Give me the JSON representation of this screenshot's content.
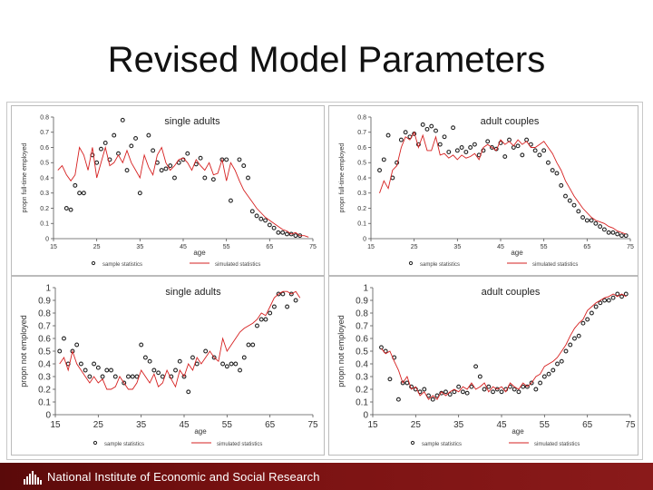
{
  "slide": {
    "title": "Revised Model Parameters",
    "footer_text": "National Institute of Economic and Social Research"
  },
  "colors": {
    "sim_line": "#d62020",
    "sample_marker": "#222222",
    "footer_bg": "#7a1212"
  },
  "chart_data": [
    {
      "type": "scatter",
      "title": "single adults",
      "xlabel": "age",
      "ylabel": "propn full-time employed",
      "xlim": [
        15,
        75
      ],
      "ylim": [
        0,
        0.8
      ],
      "xticks": [
        "15",
        "25",
        "35",
        "45",
        "55",
        "65",
        "75"
      ],
      "yticks": [
        "0",
        "0.1",
        "0.2",
        "0.3",
        "0.4",
        "0.5",
        "0.6",
        "0.7",
        "0.8"
      ],
      "legend": [
        "sample statistics",
        "simulated statistics"
      ],
      "series": [
        {
          "name": "sample statistics",
          "kind": "markers",
          "x": [
            18,
            19,
            20,
            21,
            22,
            24,
            25,
            26,
            27,
            28,
            29,
            30,
            31,
            32,
            33,
            34,
            35,
            37,
            38,
            39,
            40,
            41,
            42,
            43,
            44,
            45,
            46,
            48,
            49,
            50,
            52,
            54,
            55,
            56,
            58,
            59,
            60,
            61,
            62,
            63,
            64,
            65,
            66,
            67,
            68,
            69,
            70,
            71,
            72
          ],
          "y": [
            0.2,
            0.19,
            0.35,
            0.3,
            0.3,
            0.55,
            0.5,
            0.59,
            0.63,
            0.52,
            0.68,
            0.56,
            0.78,
            0.45,
            0.61,
            0.66,
            0.3,
            0.68,
            0.58,
            0.5,
            0.45,
            0.46,
            0.48,
            0.4,
            0.5,
            0.52,
            0.56,
            0.49,
            0.53,
            0.4,
            0.39,
            0.52,
            0.52,
            0.25,
            0.52,
            0.48,
            0.4,
            0.18,
            0.15,
            0.13,
            0.12,
            0.09,
            0.07,
            0.04,
            0.04,
            0.03,
            0.03,
            0.02,
            0.02
          ]
        },
        {
          "name": "simulated statistics",
          "kind": "line",
          "x": [
            16,
            17,
            18,
            19,
            20,
            21,
            22,
            23,
            24,
            25,
            26,
            27,
            28,
            29,
            30,
            31,
            32,
            33,
            34,
            35,
            36,
            37,
            38,
            39,
            40,
            41,
            42,
            43,
            44,
            45,
            46,
            47,
            48,
            49,
            50,
            51,
            52,
            53,
            54,
            55,
            56,
            57,
            58,
            59,
            60,
            61,
            62,
            63,
            64,
            65,
            66,
            67,
            68,
            69,
            70,
            71,
            72,
            73,
            74
          ],
          "y": [
            0.45,
            0.48,
            0.42,
            0.38,
            0.42,
            0.6,
            0.55,
            0.45,
            0.6,
            0.4,
            0.5,
            0.6,
            0.48,
            0.5,
            0.55,
            0.5,
            0.58,
            0.5,
            0.45,
            0.4,
            0.55,
            0.47,
            0.42,
            0.55,
            0.6,
            0.5,
            0.45,
            0.48,
            0.52,
            0.53,
            0.5,
            0.45,
            0.52,
            0.48,
            0.45,
            0.5,
            0.42,
            0.43,
            0.52,
            0.38,
            0.5,
            0.45,
            0.38,
            0.32,
            0.28,
            0.24,
            0.2,
            0.17,
            0.14,
            0.12,
            0.1,
            0.08,
            0.06,
            0.05,
            0.03,
            0.04,
            0.02,
            0.02,
            0.01
          ]
        }
      ]
    },
    {
      "type": "scatter",
      "title": "adult couples",
      "xlabel": "age",
      "ylabel": "propn full-time employed",
      "xlim": [
        15,
        75
      ],
      "ylim": [
        0,
        0.8
      ],
      "xticks": [
        "15",
        "25",
        "35",
        "45",
        "55",
        "65",
        "75"
      ],
      "yticks": [
        "0",
        "0.1",
        "0.2",
        "0.3",
        "0.4",
        "0.5",
        "0.6",
        "0.7",
        "0.8"
      ],
      "legend": [
        "sample statistics",
        "simulated statistics"
      ],
      "series": [
        {
          "name": "sample statistics",
          "kind": "markers",
          "x": [
            17,
            18,
            19,
            20,
            21,
            22,
            23,
            24,
            25,
            26,
            27,
            28,
            29,
            30,
            31,
            32,
            33,
            34,
            35,
            36,
            37,
            38,
            39,
            40,
            41,
            42,
            43,
            44,
            45,
            46,
            47,
            48,
            49,
            50,
            51,
            52,
            53,
            54,
            55,
            56,
            57,
            58,
            59,
            60,
            61,
            62,
            63,
            64,
            65,
            66,
            67,
            68,
            69,
            70,
            71,
            72,
            73,
            74
          ],
          "y": [
            0.45,
            0.52,
            0.68,
            0.4,
            0.5,
            0.65,
            0.7,
            0.67,
            0.69,
            0.62,
            0.75,
            0.72,
            0.74,
            0.71,
            0.62,
            0.67,
            0.57,
            0.73,
            0.58,
            0.6,
            0.57,
            0.6,
            0.62,
            0.55,
            0.58,
            0.64,
            0.6,
            0.59,
            0.63,
            0.54,
            0.65,
            0.6,
            0.61,
            0.55,
            0.65,
            0.62,
            0.58,
            0.55,
            0.58,
            0.5,
            0.45,
            0.43,
            0.35,
            0.28,
            0.25,
            0.22,
            0.18,
            0.14,
            0.12,
            0.12,
            0.1,
            0.08,
            0.06,
            0.04,
            0.04,
            0.03,
            0.02,
            0.02
          ]
        },
        {
          "name": "simulated statistics",
          "kind": "line",
          "x": [
            17,
            18,
            19,
            20,
            21,
            22,
            23,
            24,
            25,
            26,
            27,
            28,
            29,
            30,
            31,
            32,
            33,
            34,
            35,
            36,
            37,
            38,
            39,
            40,
            41,
            42,
            43,
            44,
            45,
            46,
            47,
            48,
            49,
            50,
            51,
            52,
            53,
            54,
            55,
            56,
            57,
            58,
            59,
            60,
            61,
            62,
            63,
            64,
            65,
            66,
            67,
            68,
            69,
            70,
            71,
            72,
            73,
            74
          ],
          "y": [
            0.3,
            0.38,
            0.33,
            0.45,
            0.48,
            0.6,
            0.67,
            0.65,
            0.7,
            0.6,
            0.68,
            0.58,
            0.58,
            0.67,
            0.55,
            0.56,
            0.53,
            0.55,
            0.52,
            0.55,
            0.53,
            0.54,
            0.56,
            0.52,
            0.6,
            0.62,
            0.6,
            0.58,
            0.65,
            0.62,
            0.64,
            0.61,
            0.65,
            0.62,
            0.64,
            0.6,
            0.6,
            0.62,
            0.64,
            0.6,
            0.56,
            0.5,
            0.45,
            0.38,
            0.33,
            0.28,
            0.24,
            0.2,
            0.17,
            0.14,
            0.12,
            0.11,
            0.1,
            0.08,
            0.07,
            0.05,
            0.04,
            0.03
          ]
        }
      ]
    },
    {
      "type": "scatter",
      "title": "single adults",
      "xlabel": "age",
      "ylabel": "propn not employed",
      "xlim": [
        15,
        75
      ],
      "ylim": [
        0,
        1
      ],
      "xticks": [
        "15",
        "25",
        "35",
        "45",
        "55",
        "65",
        "75"
      ],
      "yticks": [
        "0",
        "0.1",
        "0.2",
        "0.3",
        "0.4",
        "0.5",
        "0.6",
        "0.7",
        "0.8",
        "0.9",
        "1"
      ],
      "legend": [
        "sample statistics",
        "simulated statistics"
      ],
      "series": [
        {
          "name": "sample statistics",
          "kind": "markers",
          "x": [
            16,
            17,
            18,
            19,
            20,
            21,
            22,
            23,
            24,
            25,
            26,
            27,
            28,
            29,
            31,
            32,
            33,
            34,
            35,
            36,
            37,
            38,
            39,
            40,
            42,
            43,
            44,
            45,
            46,
            47,
            48,
            50,
            52,
            54,
            55,
            56,
            57,
            58,
            59,
            60,
            61,
            62,
            63,
            64,
            65,
            66,
            67,
            68,
            69,
            70,
            71
          ],
          "y": [
            0.5,
            0.6,
            0.4,
            0.5,
            0.55,
            0.4,
            0.35,
            0.3,
            0.4,
            0.37,
            0.3,
            0.35,
            0.35,
            0.3,
            0.25,
            0.3,
            0.3,
            0.3,
            0.55,
            0.45,
            0.42,
            0.35,
            0.33,
            0.3,
            0.3,
            0.35,
            0.42,
            0.3,
            0.18,
            0.45,
            0.4,
            0.5,
            0.45,
            0.4,
            0.38,
            0.4,
            0.4,
            0.35,
            0.45,
            0.55,
            0.55,
            0.7,
            0.75,
            0.75,
            0.8,
            0.85,
            0.95,
            0.95,
            0.85,
            0.95,
            0.9
          ]
        },
        {
          "name": "simulated statistics",
          "kind": "line",
          "x": [
            16,
            17,
            18,
            19,
            20,
            21,
            22,
            23,
            24,
            25,
            26,
            27,
            28,
            29,
            30,
            31,
            32,
            33,
            34,
            35,
            36,
            37,
            38,
            39,
            40,
            41,
            42,
            43,
            44,
            45,
            46,
            47,
            48,
            49,
            50,
            51,
            52,
            53,
            54,
            55,
            56,
            57,
            58,
            59,
            60,
            61,
            62,
            63,
            64,
            65,
            66,
            67,
            68,
            69,
            70,
            71,
            72
          ],
          "y": [
            0.4,
            0.45,
            0.35,
            0.5,
            0.4,
            0.35,
            0.3,
            0.25,
            0.3,
            0.25,
            0.28,
            0.2,
            0.2,
            0.22,
            0.3,
            0.25,
            0.2,
            0.2,
            0.25,
            0.35,
            0.3,
            0.25,
            0.32,
            0.22,
            0.25,
            0.35,
            0.28,
            0.22,
            0.35,
            0.3,
            0.4,
            0.35,
            0.45,
            0.4,
            0.45,
            0.5,
            0.45,
            0.42,
            0.6,
            0.5,
            0.55,
            0.6,
            0.65,
            0.68,
            0.7,
            0.72,
            0.75,
            0.8,
            0.78,
            0.85,
            0.92,
            0.95,
            0.97,
            0.97,
            0.95,
            0.97,
            0.92
          ]
        }
      ]
    },
    {
      "type": "scatter",
      "title": "adult couples",
      "xlabel": "age",
      "ylabel": "propn not employed",
      "xlim": [
        15,
        75
      ],
      "ylim": [
        0,
        1
      ],
      "xticks": [
        "15",
        "25",
        "35",
        "45",
        "55",
        "65",
        "75"
      ],
      "yticks": [
        "0",
        "0.1",
        "0.2",
        "0.3",
        "0.4",
        "0.5",
        "0.6",
        "0.7",
        "0.8",
        "0.9",
        "1"
      ],
      "legend": [
        "sample statistics",
        "simulated statistics"
      ],
      "series": [
        {
          "name": "sample statistics",
          "kind": "markers",
          "x": [
            17,
            18,
            19,
            20,
            21,
            22,
            23,
            24,
            25,
            26,
            27,
            28,
            29,
            30,
            31,
            32,
            33,
            34,
            35,
            36,
            37,
            38,
            39,
            40,
            41,
            42,
            43,
            44,
            45,
            46,
            47,
            48,
            49,
            50,
            51,
            52,
            53,
            54,
            55,
            56,
            57,
            58,
            59,
            60,
            61,
            62,
            63,
            64,
            65,
            66,
            67,
            68,
            69,
            70,
            71,
            72,
            73,
            74
          ],
          "y": [
            0.53,
            0.5,
            0.28,
            0.45,
            0.12,
            0.25,
            0.25,
            0.22,
            0.2,
            0.18,
            0.2,
            0.15,
            0.12,
            0.15,
            0.17,
            0.18,
            0.16,
            0.18,
            0.22,
            0.18,
            0.17,
            0.22,
            0.38,
            0.3,
            0.2,
            0.22,
            0.18,
            0.2,
            0.18,
            0.2,
            0.22,
            0.2,
            0.18,
            0.22,
            0.22,
            0.25,
            0.2,
            0.25,
            0.3,
            0.32,
            0.35,
            0.4,
            0.42,
            0.5,
            0.55,
            0.6,
            0.62,
            0.72,
            0.75,
            0.8,
            0.85,
            0.88,
            0.9,
            0.9,
            0.92,
            0.95,
            0.93,
            0.95
          ]
        },
        {
          "name": "simulated statistics",
          "kind": "line",
          "x": [
            17,
            18,
            19,
            20,
            21,
            22,
            23,
            24,
            25,
            26,
            27,
            28,
            29,
            30,
            31,
            32,
            33,
            34,
            35,
            36,
            37,
            38,
            39,
            40,
            41,
            42,
            43,
            44,
            45,
            46,
            47,
            48,
            49,
            50,
            51,
            52,
            53,
            54,
            55,
            56,
            57,
            58,
            59,
            60,
            61,
            62,
            63,
            64,
            65,
            66,
            67,
            68,
            69,
            70,
            71,
            72,
            73,
            74
          ],
          "y": [
            0.52,
            0.48,
            0.5,
            0.42,
            0.35,
            0.25,
            0.3,
            0.2,
            0.22,
            0.15,
            0.18,
            0.12,
            0.15,
            0.12,
            0.18,
            0.15,
            0.18,
            0.2,
            0.18,
            0.22,
            0.2,
            0.25,
            0.2,
            0.22,
            0.25,
            0.18,
            0.22,
            0.2,
            0.22,
            0.18,
            0.25,
            0.22,
            0.2,
            0.25,
            0.22,
            0.25,
            0.3,
            0.32,
            0.38,
            0.4,
            0.42,
            0.45,
            0.5,
            0.55,
            0.62,
            0.68,
            0.72,
            0.75,
            0.82,
            0.85,
            0.88,
            0.9,
            0.92,
            0.93,
            0.95,
            0.93,
            0.95,
            0.93
          ]
        }
      ]
    }
  ]
}
